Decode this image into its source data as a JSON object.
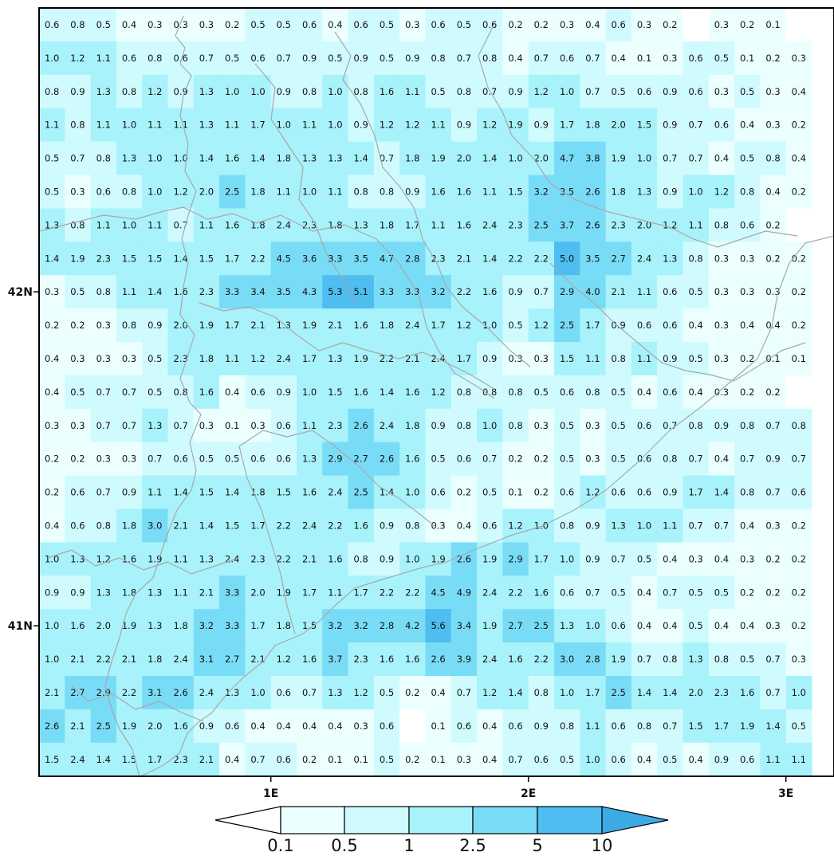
{
  "chart_data": {
    "type": "heatmap",
    "title": "",
    "x_axis": {
      "tick_labels": [
        "1E",
        "2E",
        "3E"
      ],
      "tick_values": [
        1,
        2,
        3
      ]
    },
    "y_axis": {
      "tick_labels": [
        "42N",
        "41N"
      ],
      "tick_values": [
        42,
        41
      ]
    },
    "grid": false,
    "colorbar": {
      "placement": "bottom",
      "boundaries": [
        0.1,
        0.5,
        1,
        2.5,
        5,
        10
      ],
      "labels": [
        "0.1",
        "0.5",
        "1",
        "2.5",
        "5",
        "10"
      ],
      "colors": [
        "#ffffff",
        "#ebffff",
        "#cffbff",
        "#a8f2fb",
        "#79dcf6",
        "#4fbdf0",
        "#3eaae4"
      ]
    },
    "values": [
      [
        0.6,
        0.8,
        0.5,
        0.4,
        0.3,
        0.3,
        0.3,
        0.2,
        0.5,
        0.5,
        0.6,
        0.4,
        0.6,
        0.5,
        0.3,
        0.6,
        0.5,
        0.6,
        0.2,
        0.2,
        0.3,
        0.4,
        0.6,
        0.3,
        0.2,
        null,
        0.3,
        0.2,
        0.1,
        null
      ],
      [
        1.0,
        1.2,
        1.1,
        0.6,
        0.8,
        0.6,
        0.7,
        0.5,
        0.6,
        0.7,
        0.9,
        0.5,
        0.9,
        0.5,
        0.9,
        0.8,
        0.7,
        0.8,
        0.4,
        0.7,
        0.6,
        0.7,
        0.4,
        0.1,
        0.3,
        0.6,
        0.5,
        0.1,
        0.2,
        0.3
      ],
      [
        0.8,
        0.9,
        1.3,
        0.8,
        1.2,
        0.9,
        1.3,
        1.0,
        1.0,
        0.9,
        0.8,
        1.0,
        0.8,
        1.6,
        1.1,
        0.5,
        0.8,
        0.7,
        0.9,
        1.2,
        1.0,
        0.7,
        0.5,
        0.6,
        0.9,
        0.6,
        0.3,
        0.5,
        0.3,
        0.4
      ],
      [
        1.1,
        0.8,
        1.1,
        1.0,
        1.1,
        1.1,
        1.3,
        1.1,
        1.7,
        1.0,
        1.1,
        1.0,
        0.9,
        1.2,
        1.2,
        1.1,
        0.9,
        1.2,
        1.9,
        0.9,
        1.7,
        1.8,
        2.0,
        1.5,
        0.9,
        0.7,
        0.6,
        0.4,
        0.3,
        0.2
      ],
      [
        0.5,
        0.7,
        0.8,
        1.3,
        1.0,
        1.0,
        1.4,
        1.6,
        1.4,
        1.8,
        1.3,
        1.3,
        1.4,
        0.7,
        1.8,
        1.9,
        2.0,
        1.4,
        1.0,
        2.0,
        4.7,
        3.8,
        1.9,
        1.0,
        0.7,
        0.7,
        0.4,
        0.5,
        0.8,
        0.4
      ],
      [
        0.5,
        0.3,
        0.6,
        0.8,
        1.0,
        1.2,
        2.0,
        2.5,
        1.8,
        1.1,
        1.0,
        1.1,
        0.8,
        0.8,
        0.9,
        1.6,
        1.6,
        1.1,
        1.5,
        3.2,
        3.5,
        2.6,
        1.8,
        1.3,
        0.9,
        1.0,
        1.2,
        0.8,
        0.4,
        0.2
      ],
      [
        1.3,
        0.8,
        1.1,
        1.0,
        1.1,
        0.7,
        1.1,
        1.6,
        1.8,
        2.4,
        2.3,
        1.8,
        1.3,
        1.8,
        1.7,
        1.1,
        1.6,
        2.4,
        2.3,
        2.5,
        3.7,
        2.6,
        2.3,
        2.0,
        1.2,
        1.1,
        0.8,
        0.6,
        0.2,
        null
      ],
      [
        1.4,
        1.9,
        2.3,
        1.5,
        1.5,
        1.4,
        1.5,
        1.7,
        2.2,
        4.5,
        3.6,
        3.3,
        3.5,
        4.7,
        2.8,
        2.3,
        2.1,
        1.4,
        2.2,
        2.2,
        5.0,
        3.5,
        2.7,
        2.4,
        1.3,
        0.8,
        0.3,
        0.3,
        0.2,
        0.2
      ],
      [
        0.3,
        0.5,
        0.8,
        1.1,
        1.4,
        1.6,
        2.3,
        3.3,
        3.4,
        3.5,
        4.3,
        5.3,
        5.1,
        3.3,
        3.3,
        3.2,
        2.2,
        1.6,
        0.9,
        0.7,
        2.9,
        4.0,
        2.1,
        1.1,
        0.6,
        0.5,
        0.3,
        0.3,
        0.3,
        0.2
      ],
      [
        0.2,
        0.2,
        0.3,
        0.8,
        0.9,
        2.0,
        1.9,
        1.7,
        2.1,
        1.3,
        1.9,
        2.1,
        1.6,
        1.8,
        2.4,
        1.7,
        1.2,
        1.0,
        0.5,
        1.2,
        2.5,
        1.7,
        0.9,
        0.6,
        0.6,
        0.4,
        0.3,
        0.4,
        0.4,
        0.2
      ],
      [
        0.4,
        0.3,
        0.3,
        0.3,
        0.5,
        2.3,
        1.8,
        1.1,
        1.2,
        2.4,
        1.7,
        1.3,
        1.9,
        2.2,
        2.1,
        2.4,
        1.7,
        0.9,
        0.3,
        0.3,
        1.5,
        1.1,
        0.8,
        1.1,
        0.9,
        0.5,
        0.3,
        0.2,
        0.1,
        0.1
      ],
      [
        0.4,
        0.5,
        0.7,
        0.7,
        0.5,
        0.8,
        1.6,
        0.4,
        0.6,
        0.9,
        1.0,
        1.5,
        1.6,
        1.4,
        1.6,
        1.2,
        0.8,
        0.8,
        0.8,
        0.5,
        0.6,
        0.8,
        0.5,
        0.4,
        0.6,
        0.4,
        0.3,
        0.2,
        0.2,
        null
      ],
      [
        0.3,
        0.3,
        0.7,
        0.7,
        1.3,
        0.7,
        0.3,
        0.1,
        0.3,
        0.6,
        1.1,
        2.3,
        2.6,
        2.4,
        1.8,
        0.9,
        0.8,
        1.0,
        0.8,
        0.3,
        0.5,
        0.3,
        0.5,
        0.6,
        0.7,
        0.8,
        0.9,
        0.8,
        0.7,
        0.8
      ],
      [
        0.2,
        0.2,
        0.3,
        0.3,
        0.7,
        0.6,
        0.5,
        0.5,
        0.6,
        0.6,
        1.3,
        2.9,
        2.7,
        2.6,
        1.6,
        0.5,
        0.6,
        0.7,
        0.2,
        0.2,
        0.5,
        0.3,
        0.5,
        0.6,
        0.8,
        0.7,
        0.4,
        0.7,
        0.9,
        0.7
      ],
      [
        0.2,
        0.6,
        0.7,
        0.9,
        1.1,
        1.4,
        1.5,
        1.4,
        1.8,
        1.5,
        1.6,
        2.4,
        2.5,
        1.4,
        1.0,
        0.6,
        0.2,
        0.5,
        0.1,
        0.2,
        0.6,
        1.2,
        0.6,
        0.6,
        0.9,
        1.7,
        1.4,
        0.8,
        0.7,
        0.6
      ],
      [
        0.4,
        0.6,
        0.8,
        1.8,
        3.0,
        2.1,
        1.4,
        1.5,
        1.7,
        2.2,
        2.4,
        2.2,
        1.6,
        0.9,
        0.8,
        0.3,
        0.4,
        0.6,
        1.2,
        1.0,
        0.8,
        0.9,
        1.3,
        1.0,
        1.1,
        0.7,
        0.7,
        0.4,
        0.3,
        0.2
      ],
      [
        1.0,
        1.3,
        1.2,
        1.6,
        1.9,
        1.1,
        1.3,
        2.4,
        2.3,
        2.2,
        2.1,
        1.6,
        0.8,
        0.9,
        1.0,
        1.9,
        2.6,
        1.9,
        2.9,
        1.7,
        1.0,
        0.9,
        0.7,
        0.5,
        0.4,
        0.3,
        0.4,
        0.3,
        0.2,
        0.2
      ],
      [
        0.9,
        0.9,
        1.3,
        1.8,
        1.3,
        1.1,
        2.1,
        3.3,
        2.0,
        1.9,
        1.7,
        1.1,
        1.7,
        2.2,
        2.2,
        4.5,
        4.9,
        2.4,
        2.2,
        1.6,
        0.6,
        0.7,
        0.5,
        0.4,
        0.7,
        0.5,
        0.5,
        0.2,
        0.2,
        0.2
      ],
      [
        1.0,
        1.6,
        2.0,
        1.9,
        1.3,
        1.8,
        3.2,
        3.3,
        1.7,
        1.8,
        1.5,
        3.2,
        3.2,
        2.8,
        4.2,
        5.6,
        3.4,
        1.9,
        2.7,
        2.5,
        1.3,
        1.0,
        0.6,
        0.4,
        0.4,
        0.5,
        0.4,
        0.4,
        0.3,
        0.2
      ],
      [
        1.0,
        2.1,
        2.2,
        2.1,
        1.8,
        2.4,
        3.1,
        2.7,
        2.1,
        1.2,
        1.6,
        3.7,
        2.3,
        1.6,
        1.6,
        2.6,
        3.9,
        2.4,
        1.6,
        2.2,
        3.0,
        2.8,
        1.9,
        0.7,
        0.8,
        1.3,
        0.8,
        0.5,
        0.7,
        0.3
      ],
      [
        2.1,
        2.7,
        2.9,
        2.2,
        3.1,
        2.6,
        2.4,
        1.3,
        1.0,
        0.6,
        0.7,
        1.3,
        1.2,
        0.5,
        0.2,
        0.4,
        0.7,
        1.2,
        1.4,
        0.8,
        1.0,
        1.7,
        2.5,
        1.4,
        1.4,
        2.0,
        2.3,
        1.6,
        0.7,
        1.0
      ],
      [
        2.6,
        2.1,
        2.5,
        1.9,
        2.0,
        1.6,
        0.9,
        0.6,
        0.4,
        0.4,
        0.4,
        0.4,
        0.3,
        0.6,
        null,
        0.1,
        0.6,
        0.4,
        0.6,
        0.9,
        0.8,
        1.1,
        0.6,
        0.8,
        0.7,
        1.5,
        1.7,
        1.9,
        1.4,
        0.5
      ],
      [
        1.5,
        2.4,
        1.4,
        1.5,
        1.7,
        2.3,
        2.1,
        0.4,
        0.7,
        0.6,
        0.2,
        0.1,
        0.1,
        0.5,
        0.2,
        0.1,
        0.3,
        0.4,
        0.7,
        0.6,
        0.5,
        1.0,
        0.6,
        0.4,
        0.5,
        0.4,
        0.9,
        0.6,
        1.1,
        1.1
      ]
    ]
  }
}
